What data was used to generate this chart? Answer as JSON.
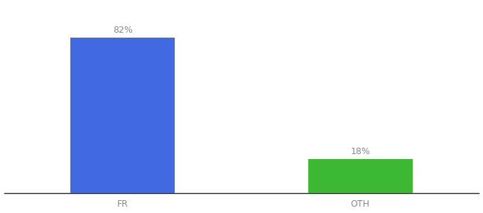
{
  "categories": [
    "FR",
    "OTH"
  ],
  "values": [
    82,
    18
  ],
  "bar_colors": [
    "#4169e1",
    "#3cb832"
  ],
  "value_labels": [
    "82%",
    "18%"
  ],
  "background_color": "#ffffff",
  "ylim": [
    0,
    100
  ],
  "label_fontsize": 9,
  "tick_fontsize": 9,
  "label_color": "#888888",
  "bar_positions": [
    0.25,
    0.75
  ],
  "bar_width": 0.22
}
